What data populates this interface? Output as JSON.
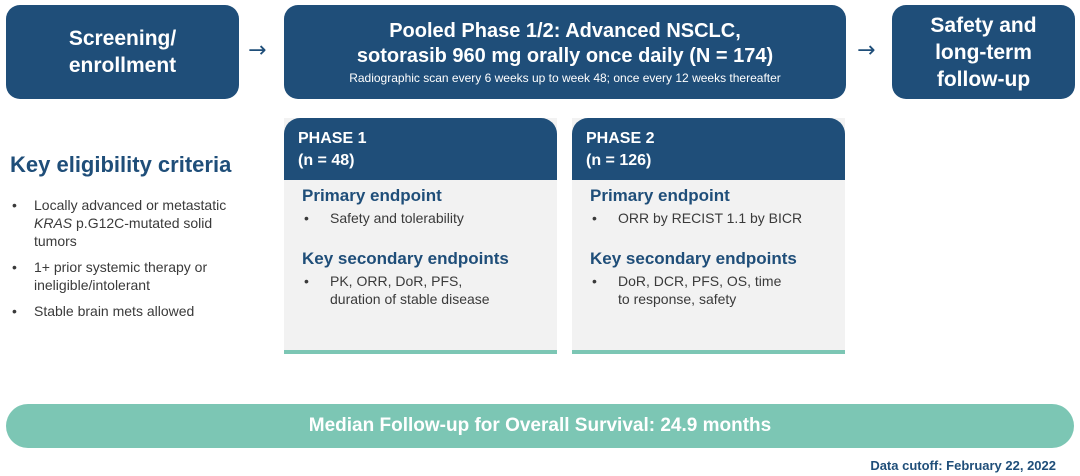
{
  "flow": {
    "screening": {
      "line1": "Screening/",
      "line2": "enrollment"
    },
    "pooled": {
      "title_line1": "Pooled Phase 1/2: Advanced NSCLC,",
      "title_line2": "sotorasib 960 mg orally once daily (N = 174)",
      "subtitle": "Radiographic scan every 6 weeks up to week 48; once every 12 weeks thereafter"
    },
    "safety": {
      "line1": "Safety and",
      "line2": "long-term",
      "line3": "follow-up"
    },
    "arrow_glyph": "→"
  },
  "eligibility": {
    "title": "Key eligibility criteria",
    "bullet": "•",
    "item1": {
      "line1": "Locally advanced or metastatic",
      "italic": "KRAS",
      "line2_rest": " p.G12C-mutated solid",
      "line3": "tumors"
    },
    "item2": {
      "line1": "1+ prior systemic therapy or",
      "line2": "ineligible/intolerant"
    },
    "item3": {
      "line1": "Stable brain mets allowed"
    }
  },
  "phases": [
    {
      "name": "PHASE 1",
      "n": "(n = 48)",
      "primary_title": "Primary endpoint",
      "primary_item": "Safety and tolerability",
      "secondary_title": "Key secondary endpoints",
      "secondary_line1": "PK, ORR, DoR, PFS,",
      "secondary_line2": "duration of stable disease"
    },
    {
      "name": "PHASE 2",
      "n": "(n = 126)",
      "primary_title": "Primary endpoint",
      "primary_item": "ORR by RECIST 1.1 by BICR",
      "secondary_title": "Key secondary endpoints",
      "secondary_line1": "DoR, DCR, PFS, OS, time",
      "secondary_line2": "to response, safety"
    }
  ],
  "banner": "Median Follow-up for Overall Survival:  24.9 months",
  "cutoff": "Data cutoff: February 22, 2022",
  "colors": {
    "navy": "#1f4e79",
    "teal": "#7cc6b4",
    "card_bg": "#f2f2f2"
  }
}
